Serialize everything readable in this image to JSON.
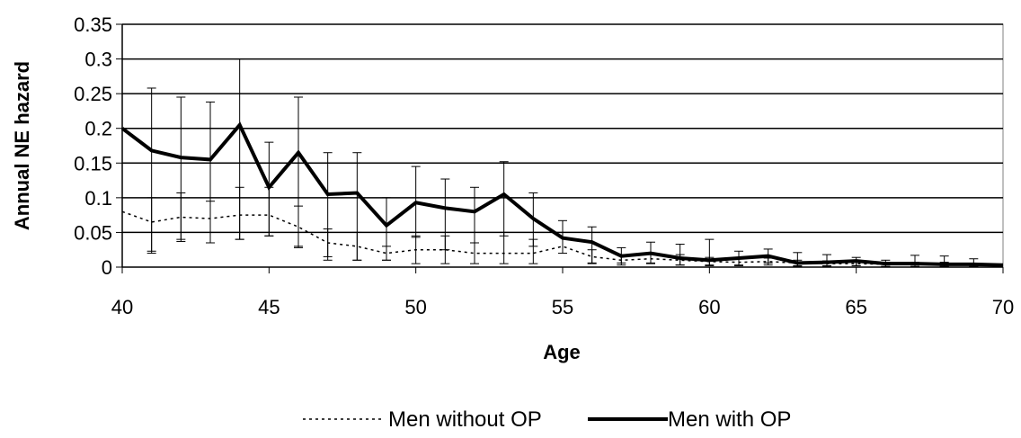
{
  "chart_data": {
    "type": "line",
    "xlabel": "Age",
    "ylabel": "Annual NE hazard",
    "xlim": [
      40,
      70
    ],
    "ylim": [
      0,
      0.35
    ],
    "x_ticks": [
      40,
      45,
      50,
      55,
      60,
      65,
      70
    ],
    "y_ticks": [
      0,
      0.05,
      0.1,
      0.15,
      0.2,
      0.25,
      0.3,
      0.35
    ],
    "y_tick_labels": [
      "0",
      "0.05",
      "0.1",
      "0.15",
      "0.2",
      "0.25",
      "0.3",
      "0.35"
    ],
    "grid": "horizontal",
    "legend_position": "bottom",
    "series": [
      {
        "name": "Men without OP",
        "style": "dotted",
        "color": "#000000",
        "x": [
          40,
          41,
          42,
          43,
          44,
          45,
          46,
          47,
          48,
          49,
          50,
          51,
          52,
          53,
          54,
          55,
          56,
          57,
          58,
          59,
          60,
          61,
          62,
          63,
          64,
          65,
          66,
          67,
          68,
          69,
          70
        ],
        "y": [
          0.08,
          0.065,
          0.072,
          0.07,
          0.075,
          0.075,
          0.058,
          0.035,
          0.03,
          0.02,
          0.025,
          0.025,
          0.02,
          0.02,
          0.02,
          0.03,
          0.015,
          0.01,
          0.012,
          0.01,
          0.008,
          0.007,
          0.008,
          0.006,
          0.005,
          0.005,
          0.004,
          0.004,
          0.004,
          0.003,
          0.003
        ],
        "err_low": [
          null,
          0.045,
          0.035,
          0.035,
          0.035,
          0.03,
          0.03,
          0.025,
          0.02,
          0.01,
          0.02,
          0.02,
          0.015,
          0.015,
          0.015,
          null,
          0.01,
          0.007,
          0.007,
          0.007,
          0.005,
          0.005,
          0.005,
          0.004,
          0.004,
          0.003,
          0.003,
          0.003,
          0.003,
          0.002,
          null
        ],
        "err_high": [
          null,
          0.035,
          0.035,
          0.025,
          0.04,
          0.04,
          0.03,
          0.02,
          0.02,
          0.01,
          0.02,
          0.02,
          0.015,
          0.03,
          0.02,
          null,
          0.01,
          0.008,
          0.008,
          0.008,
          0.006,
          0.005,
          0.005,
          0.004,
          0.004,
          0.003,
          0.003,
          0.003,
          0.003,
          0.002,
          null
        ]
      },
      {
        "name": "Men with OP",
        "style": "solid-bold",
        "color": "#000000",
        "x": [
          40,
          41,
          42,
          43,
          44,
          45,
          46,
          47,
          48,
          49,
          50,
          51,
          52,
          53,
          54,
          55,
          56,
          57,
          58,
          59,
          60,
          61,
          62,
          63,
          64,
          65,
          66,
          67,
          68,
          69,
          70
        ],
        "y": [
          0.2,
          0.168,
          0.158,
          0.155,
          0.205,
          0.115,
          0.165,
          0.105,
          0.107,
          0.06,
          0.093,
          0.085,
          0.08,
          0.105,
          0.07,
          0.042,
          0.036,
          0.016,
          0.02,
          0.013,
          0.01,
          0.013,
          0.016,
          0.006,
          0.007,
          0.009,
          0.005,
          0.005,
          0.004,
          0.004,
          0.003
        ],
        "err_low": [
          null,
          0.145,
          0.118,
          0.12,
          0.165,
          0.07,
          0.135,
          0.09,
          0.097,
          0.05,
          0.05,
          0.06,
          0.045,
          0.06,
          0.04,
          0.022,
          0.03,
          0.01,
          0.014,
          0.01,
          0.008,
          0.01,
          0.01,
          0.005,
          0.005,
          0.007,
          0.004,
          0.004,
          0.003,
          0.003,
          null
        ],
        "err_high": [
          null,
          0.09,
          0.087,
          0.083,
          0.095,
          0.065,
          0.08,
          0.06,
          0.058,
          0.04,
          0.052,
          0.042,
          0.035,
          0.047,
          0.037,
          0.025,
          0.022,
          0.012,
          0.016,
          0.02,
          0.03,
          0.01,
          0.01,
          0.015,
          0.011,
          0.005,
          0.005,
          0.012,
          0.012,
          0.008,
          null
        ]
      }
    ]
  }
}
